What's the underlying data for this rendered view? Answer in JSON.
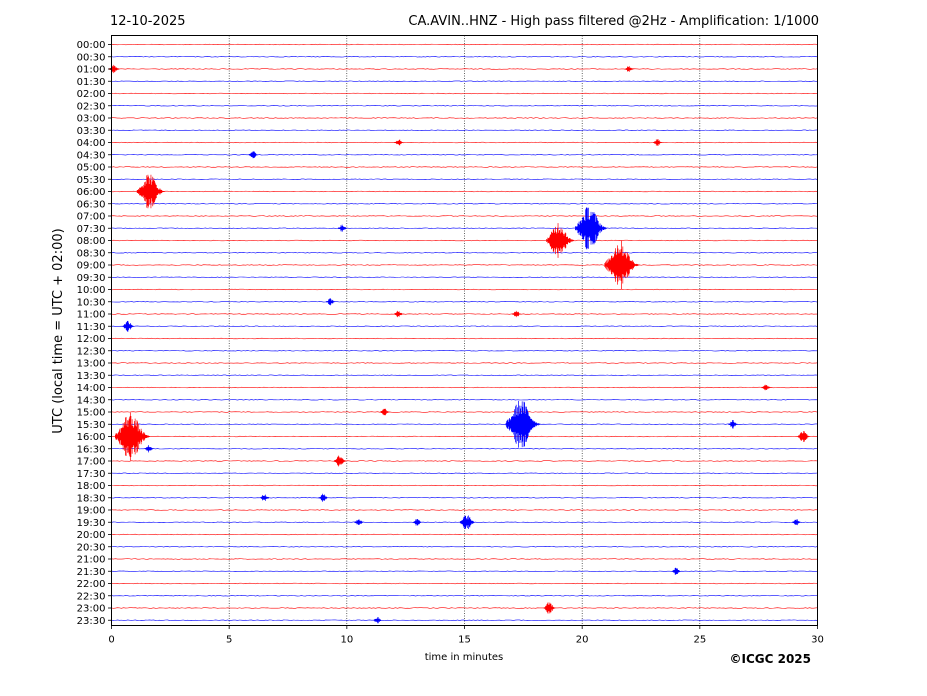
{
  "date": "12-10-2025",
  "title": "CA.AVIN..HNZ - High pass filtered @2Hz - Amplification: 1/1000",
  "copyright": "©ICGC 2025",
  "chart_data": {
    "type": "line",
    "title": "CA.AVIN..HNZ - High pass filtered @2Hz - Amplification: 1/1000",
    "xlabel": "time in minutes",
    "ylabel": "UTC (local time = UTC + 02:00)",
    "xlim": [
      0,
      30
    ],
    "x_ticks": [
      0,
      5,
      10,
      15,
      20,
      25,
      30
    ],
    "grid": "vertical dotted lines at 5-minute ticks",
    "trace_colors": [
      "#ff0000",
      "#0000ff"
    ],
    "rows": [
      "00:00",
      "00:30",
      "01:00",
      "01:30",
      "02:00",
      "02:30",
      "03:00",
      "03:30",
      "04:00",
      "04:30",
      "05:00",
      "05:30",
      "06:00",
      "06:30",
      "07:00",
      "07:30",
      "08:00",
      "08:30",
      "09:00",
      "09:30",
      "10:00",
      "10:30",
      "11:00",
      "11:30",
      "12:00",
      "12:30",
      "13:00",
      "13:30",
      "14:00",
      "14:30",
      "15:00",
      "15:30",
      "16:00",
      "16:30",
      "17:00",
      "17:30",
      "18:00",
      "18:30",
      "19:00",
      "19:30",
      "20:00",
      "20:30",
      "21:00",
      "21:30",
      "22:00",
      "22:30",
      "23:00",
      "23:30"
    ],
    "events": [
      {
        "row": "01:00",
        "minute": 0.1,
        "amplitude": 0.15
      },
      {
        "row": "01:00",
        "minute": 22.0,
        "amplitude": 0.1
      },
      {
        "row": "04:00",
        "minute": 12.2,
        "amplitude": 0.1
      },
      {
        "row": "04:00",
        "minute": 23.2,
        "amplitude": 0.1
      },
      {
        "row": "04:30",
        "minute": 6.0,
        "amplitude": 0.12
      },
      {
        "row": "06:00",
        "minute": 1.6,
        "amplitude": 0.75
      },
      {
        "row": "07:30",
        "minute": 9.8,
        "amplitude": 0.1
      },
      {
        "row": "07:30",
        "minute": 20.3,
        "amplitude": 0.9
      },
      {
        "row": "08:00",
        "minute": 19.0,
        "amplitude": 0.75
      },
      {
        "row": "09:00",
        "minute": 21.6,
        "amplitude": 1.0
      },
      {
        "row": "10:30",
        "minute": 9.3,
        "amplitude": 0.1
      },
      {
        "row": "11:00",
        "minute": 12.2,
        "amplitude": 0.1
      },
      {
        "row": "11:00",
        "minute": 17.2,
        "amplitude": 0.1
      },
      {
        "row": "11:30",
        "minute": 0.7,
        "amplitude": 0.2
      },
      {
        "row": "14:00",
        "minute": 27.8,
        "amplitude": 0.1
      },
      {
        "row": "15:00",
        "minute": 11.6,
        "amplitude": 0.1
      },
      {
        "row": "15:30",
        "minute": 17.4,
        "amplitude": 1.0
      },
      {
        "row": "15:30",
        "minute": 26.4,
        "amplitude": 0.12
      },
      {
        "row": "16:00",
        "minute": 0.8,
        "amplitude": 1.0
      },
      {
        "row": "16:00",
        "minute": 29.4,
        "amplitude": 0.2
      },
      {
        "row": "16:30",
        "minute": 1.6,
        "amplitude": 0.1
      },
      {
        "row": "17:00",
        "minute": 9.7,
        "amplitude": 0.2
      },
      {
        "row": "18:30",
        "minute": 6.5,
        "amplitude": 0.12
      },
      {
        "row": "18:30",
        "minute": 9.0,
        "amplitude": 0.12
      },
      {
        "row": "19:30",
        "minute": 10.5,
        "amplitude": 0.1
      },
      {
        "row": "19:30",
        "minute": 13.0,
        "amplitude": 0.12
      },
      {
        "row": "19:30",
        "minute": 15.1,
        "amplitude": 0.3
      },
      {
        "row": "19:30",
        "minute": 29.1,
        "amplitude": 0.1
      },
      {
        "row": "21:30",
        "minute": 24.0,
        "amplitude": 0.1
      },
      {
        "row": "23:00",
        "minute": 18.6,
        "amplitude": 0.2
      },
      {
        "row": "23:30",
        "minute": 11.3,
        "amplitude": 0.08
      }
    ]
  }
}
